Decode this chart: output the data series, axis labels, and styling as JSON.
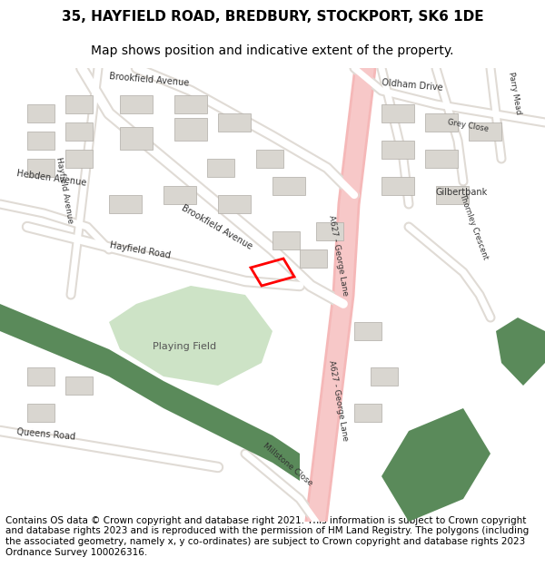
{
  "title_line1": "35, HAYFIELD ROAD, BREDBURY, STOCKPORT, SK6 1DE",
  "title_line2": "Map shows position and indicative extent of the property.",
  "copyright_text": "Contains OS data © Crown copyright and database right 2021. This information is subject to Crown copyright and database rights 2023 and is reproduced with the permission of HM Land Registry. The polygons (including the associated geometry, namely x, y co-ordinates) are subject to Crown copyright and database rights 2023 Ordnance Survey 100026316.",
  "title_fontsize": 11,
  "subtitle_fontsize": 10,
  "copyright_fontsize": 7.5,
  "bg_color": "#ffffff",
  "map_bg": "#f2ede8",
  "road_color_major": "#f5b8b8",
  "road_color_minor": "#ffffff",
  "building_color": "#d9d6d0",
  "building_edge": "#b0aca6",
  "green_dark": "#5a8a5a",
  "green_light": "#c8e0c0",
  "plot_color": "#ff0000",
  "label_color": "#333333",
  "label_fontsize": 7,
  "label_fontsize_small": 6,
  "label_fontsize_med": 6.5,
  "playing_field_fontsize": 8
}
